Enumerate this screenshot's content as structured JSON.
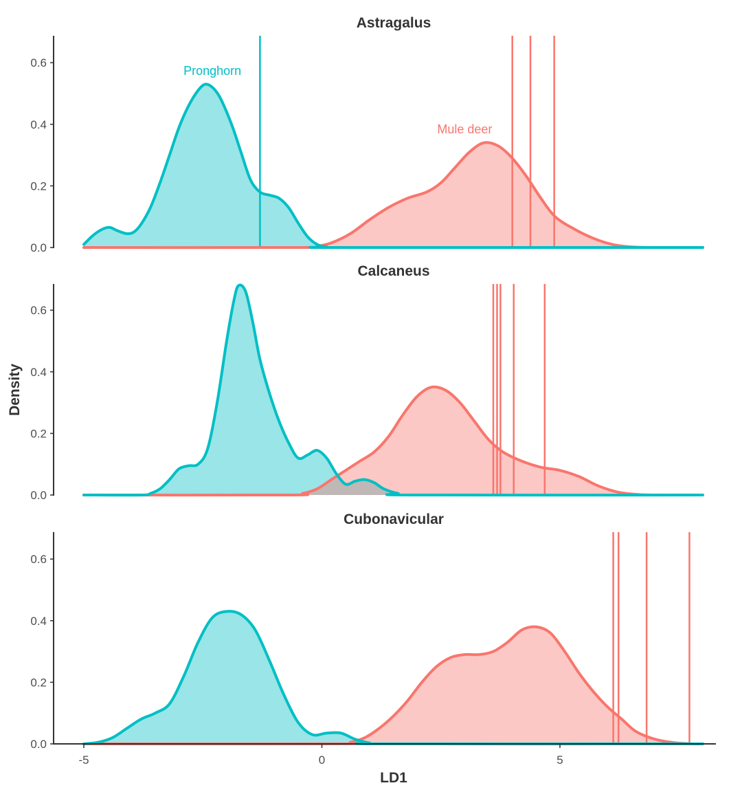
{
  "chart_data": {
    "type": "area",
    "xlabel": "LD1",
    "ylabel": "Density",
    "xlim": [
      -5,
      8
    ],
    "ylim": [
      0,
      0.68
    ],
    "x_ticks": [
      -5,
      0,
      5
    ],
    "x_tick_labels": [
      "-5",
      "0",
      "5"
    ],
    "y_ticks": [
      0.0,
      0.2,
      0.4,
      0.6
    ],
    "y_tick_labels": [
      "0.0",
      "0.2",
      "0.4",
      "0.6"
    ],
    "grid": false,
    "legend": "none",
    "colors": {
      "pronghorn": "#00BFC4",
      "mule_deer": "#F8766D"
    },
    "panels": [
      {
        "title": "Astragalus",
        "annotations": [
          {
            "text": "Pronghorn",
            "series": "pronghorn",
            "x": -2.3,
            "y": 0.56
          },
          {
            "text": "Mule deer",
            "series": "mule_deer",
            "x": 3.0,
            "y": 0.37
          }
        ],
        "series": [
          {
            "key": "pronghorn",
            "points": [
              [
                -5,
                0.01
              ],
              [
                -4.8,
                0.04
              ],
              [
                -4.6,
                0.06
              ],
              [
                -4.45,
                0.065
              ],
              [
                -4.3,
                0.055
              ],
              [
                -4.1,
                0.045
              ],
              [
                -3.95,
                0.05
              ],
              [
                -3.8,
                0.075
              ],
              [
                -3.6,
                0.13
              ],
              [
                -3.4,
                0.21
              ],
              [
                -3.2,
                0.3
              ],
              [
                -3.0,
                0.39
              ],
              [
                -2.8,
                0.46
              ],
              [
                -2.6,
                0.51
              ],
              [
                -2.45,
                0.53
              ],
              [
                -2.3,
                0.52
              ],
              [
                -2.15,
                0.49
              ],
              [
                -2.0,
                0.44
              ],
              [
                -1.85,
                0.38
              ],
              [
                -1.7,
                0.31
              ],
              [
                -1.5,
                0.22
              ],
              [
                -1.3,
                0.18
              ],
              [
                -1.1,
                0.17
              ],
              [
                -0.9,
                0.16
              ],
              [
                -0.7,
                0.13
              ],
              [
                -0.5,
                0.08
              ],
              [
                -0.3,
                0.035
              ],
              [
                -0.1,
                0.01
              ],
              [
                0.1,
                0.002
              ],
              [
                0.4,
                0.0
              ],
              [
                8,
                0.0
              ]
            ]
          },
          {
            "key": "mule_deer",
            "points": [
              [
                -5,
                0.0
              ],
              [
                -0.4,
                0.0
              ],
              [
                -0.1,
                0.004
              ],
              [
                0.2,
                0.015
              ],
              [
                0.6,
                0.045
              ],
              [
                1.0,
                0.09
              ],
              [
                1.4,
                0.13
              ],
              [
                1.8,
                0.16
              ],
              [
                2.2,
                0.18
              ],
              [
                2.5,
                0.21
              ],
              [
                2.8,
                0.26
              ],
              [
                3.1,
                0.31
              ],
              [
                3.4,
                0.34
              ],
              [
                3.7,
                0.33
              ],
              [
                4.0,
                0.29
              ],
              [
                4.3,
                0.23
              ],
              [
                4.6,
                0.16
              ],
              [
                4.9,
                0.1
              ],
              [
                5.3,
                0.06
              ],
              [
                5.7,
                0.03
              ],
              [
                6.1,
                0.01
              ],
              [
                6.5,
                0.002
              ],
              [
                7,
                0.0
              ],
              [
                8,
                0.0
              ]
            ]
          }
        ],
        "vlines": [
          {
            "series": "pronghorn",
            "x": -1.3
          },
          {
            "series": "mule_deer",
            "x": 4.0
          },
          {
            "series": "mule_deer",
            "x": 4.38
          },
          {
            "series": "mule_deer",
            "x": 4.88
          }
        ]
      },
      {
        "title": "Calcaneus",
        "annotations": [],
        "series": [
          {
            "key": "pronghorn",
            "points": [
              [
                -5,
                0.0
              ],
              [
                -3.8,
                0.0
              ],
              [
                -3.6,
                0.005
              ],
              [
                -3.4,
                0.02
              ],
              [
                -3.2,
                0.05
              ],
              [
                -3.0,
                0.085
              ],
              [
                -2.8,
                0.095
              ],
              [
                -2.6,
                0.1
              ],
              [
                -2.4,
                0.15
              ],
              [
                -2.2,
                0.3
              ],
              [
                -2.0,
                0.5
              ],
              [
                -1.85,
                0.63
              ],
              [
                -1.75,
                0.68
              ],
              [
                -1.6,
                0.66
              ],
              [
                -1.45,
                0.56
              ],
              [
                -1.3,
                0.44
              ],
              [
                -1.1,
                0.33
              ],
              [
                -0.9,
                0.24
              ],
              [
                -0.7,
                0.17
              ],
              [
                -0.5,
                0.12
              ],
              [
                -0.3,
                0.13
              ],
              [
                -0.1,
                0.145
              ],
              [
                0.1,
                0.12
              ],
              [
                0.3,
                0.07
              ],
              [
                0.5,
                0.035
              ],
              [
                0.7,
                0.045
              ],
              [
                0.9,
                0.05
              ],
              [
                1.1,
                0.04
              ],
              [
                1.3,
                0.02
              ],
              [
                1.6,
                0.005
              ],
              [
                1.9,
                0.0
              ],
              [
                8,
                0.0
              ]
            ]
          },
          {
            "key": "mule_deer",
            "points": [
              [
                -5,
                0.0
              ],
              [
                -0.7,
                0.0
              ],
              [
                -0.4,
                0.005
              ],
              [
                -0.1,
                0.02
              ],
              [
                0.2,
                0.05
              ],
              [
                0.5,
                0.08
              ],
              [
                0.8,
                0.11
              ],
              [
                1.1,
                0.14
              ],
              [
                1.4,
                0.19
              ],
              [
                1.7,
                0.26
              ],
              [
                2.0,
                0.32
              ],
              [
                2.3,
                0.35
              ],
              [
                2.6,
                0.34
              ],
              [
                2.9,
                0.3
              ],
              [
                3.2,
                0.24
              ],
              [
                3.5,
                0.18
              ],
              [
                3.8,
                0.14
              ],
              [
                4.2,
                0.11
              ],
              [
                4.6,
                0.09
              ],
              [
                5.0,
                0.08
              ],
              [
                5.4,
                0.06
              ],
              [
                5.8,
                0.03
              ],
              [
                6.2,
                0.01
              ],
              [
                6.6,
                0.002
              ],
              [
                7,
                0.0
              ],
              [
                8,
                0.0
              ]
            ]
          }
        ],
        "vlines": [
          {
            "series": "mule_deer",
            "x": 3.6
          },
          {
            "series": "mule_deer",
            "x": 3.68
          },
          {
            "series": "mule_deer",
            "x": 3.75
          },
          {
            "series": "mule_deer",
            "x": 4.03
          },
          {
            "series": "mule_deer",
            "x": 4.68
          }
        ]
      },
      {
        "title": "Cubonavicular",
        "annotations": [],
        "series": [
          {
            "key": "pronghorn",
            "points": [
              [
                -5,
                0.0
              ],
              [
                -4.7,
                0.005
              ],
              [
                -4.4,
                0.02
              ],
              [
                -4.1,
                0.05
              ],
              [
                -3.8,
                0.08
              ],
              [
                -3.5,
                0.1
              ],
              [
                -3.2,
                0.13
              ],
              [
                -2.9,
                0.22
              ],
              [
                -2.6,
                0.33
              ],
              [
                -2.3,
                0.41
              ],
              [
                -2.0,
                0.43
              ],
              [
                -1.7,
                0.42
              ],
              [
                -1.4,
                0.37
              ],
              [
                -1.1,
                0.27
              ],
              [
                -0.8,
                0.16
              ],
              [
                -0.5,
                0.07
              ],
              [
                -0.2,
                0.03
              ],
              [
                0.1,
                0.035
              ],
              [
                0.4,
                0.035
              ],
              [
                0.7,
                0.015
              ],
              [
                1.0,
                0.003
              ],
              [
                1.3,
                0.0
              ],
              [
                8,
                0.0
              ]
            ]
          },
          {
            "key": "mule_deer",
            "points": [
              [
                -5,
                0.0
              ],
              [
                0.3,
                0.0
              ],
              [
                0.6,
                0.005
              ],
              [
                0.9,
                0.02
              ],
              [
                1.2,
                0.05
              ],
              [
                1.5,
                0.09
              ],
              [
                1.8,
                0.14
              ],
              [
                2.1,
                0.2
              ],
              [
                2.4,
                0.25
              ],
              [
                2.7,
                0.28
              ],
              [
                3.0,
                0.29
              ],
              [
                3.3,
                0.29
              ],
              [
                3.6,
                0.3
              ],
              [
                3.9,
                0.33
              ],
              [
                4.2,
                0.37
              ],
              [
                4.5,
                0.38
              ],
              [
                4.8,
                0.36
              ],
              [
                5.1,
                0.3
              ],
              [
                5.4,
                0.23
              ],
              [
                5.7,
                0.17
              ],
              [
                6.0,
                0.12
              ],
              [
                6.3,
                0.08
              ],
              [
                6.6,
                0.04
              ],
              [
                7.0,
                0.015
              ],
              [
                7.4,
                0.004
              ],
              [
                7.8,
                0.0
              ],
              [
                8,
                0.0
              ]
            ]
          }
        ],
        "vlines": [
          {
            "series": "mule_deer",
            "x": 6.12
          },
          {
            "series": "mule_deer",
            "x": 6.23
          },
          {
            "series": "mule_deer",
            "x": 6.82
          },
          {
            "series": "mule_deer",
            "x": 7.72
          }
        ]
      }
    ]
  }
}
